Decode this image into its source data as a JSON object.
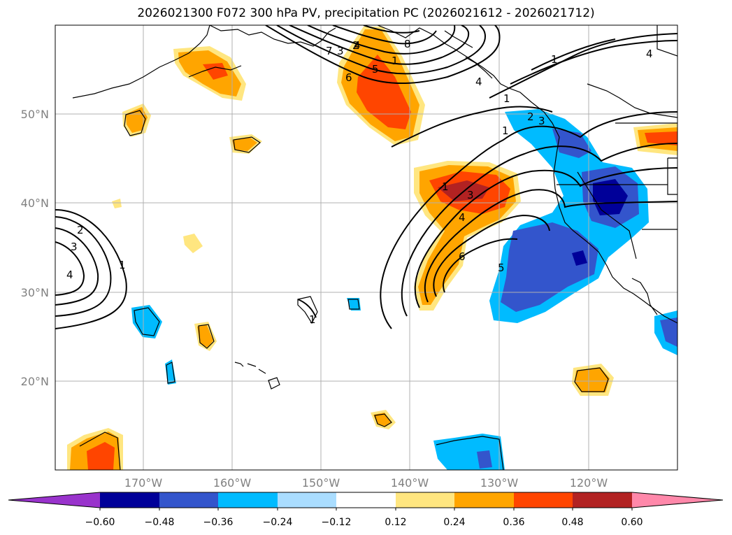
{
  "title": "2026021300 F072 300 hPa PV, precipitation PC (2026021612 - 2026021712)",
  "axes": {
    "lat_labels": [
      "50°N",
      "40°N",
      "30°N",
      "20°N"
    ],
    "lon_labels": [
      "170°W",
      "160°W",
      "150°W",
      "140°W",
      "130°W",
      "120°W"
    ]
  },
  "colorbar": {
    "colors": [
      "#9933cc",
      "#000099",
      "#3355cc",
      "#00bbff",
      "#aaddff",
      "#ffffff",
      "#ffe680",
      "#ffa500",
      "#ff4500",
      "#b22222",
      "#ff88aa"
    ],
    "tick_labels": [
      "−0.60",
      "−0.48",
      "−0.36",
      "−0.24",
      "−0.12",
      "0.12",
      "0.24",
      "0.36",
      "0.48",
      "0.60"
    ]
  },
  "contour_labels": [
    "1",
    "2",
    "3",
    "4",
    "5",
    "6",
    "7",
    "8",
    "1",
    "2",
    "3",
    "4",
    "1",
    "3",
    "4",
    "5",
    "6",
    "1",
    "4",
    "1",
    "1",
    "2",
    "3",
    "4",
    "1"
  ]
}
